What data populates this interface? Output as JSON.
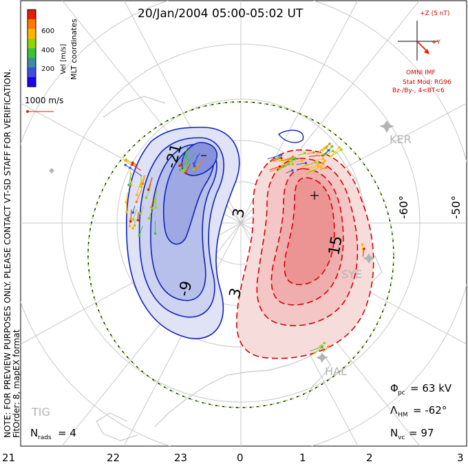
{
  "title": "20/Jan/2004 05:00-05:02 UT",
  "side_note": {
    "line1": "NOTE: FOR PREVIEW PURPOSES ONLY. PLEASE CONTACT VT-SD STAFF FOR VERIFICATION.",
    "line2": "FitOrder: 8, mapEX format"
  },
  "colorbar": {
    "label": "Vel [m/s]",
    "ticks": [
      "600",
      "400",
      "200"
    ],
    "colors": [
      "#e61e00",
      "#ff7a00",
      "#ffb400",
      "#96d200",
      "#3cc33c",
      "#3c8ca0",
      "#3c50dc",
      "#1e00f0"
    ]
  },
  "coords_label": "MLT coordinates",
  "vector_scale": {
    "label": "1000 m/s"
  },
  "imf": {
    "plus_z": "+Z (5 nT)",
    "plus_y": "+Y",
    "source": "OMNI IMF",
    "model": "Stat Mod: RG96",
    "condition": "Bz-/By-, 4<BT<6"
  },
  "contour_labels": [
    "-21",
    "-9",
    "3",
    "3",
    "15"
  ],
  "lat_labels": [
    "-60°",
    "-50°"
  ],
  "stations": [
    "KER",
    "SYE",
    "HAL",
    "TIG"
  ],
  "stats": {
    "phi_pc": "= 63 kV",
    "lambda_hm": "= -62°",
    "n_vc": "= 97",
    "n_rads": "= 4"
  },
  "mlt_axis": [
    "21",
    "22",
    "23",
    "0",
    "1",
    "2",
    "3"
  ],
  "palette": {
    "positive": "#d40000",
    "negative": "#0a14b4",
    "grid": "#bdbdbd",
    "station": "#b4b4b4"
  }
}
